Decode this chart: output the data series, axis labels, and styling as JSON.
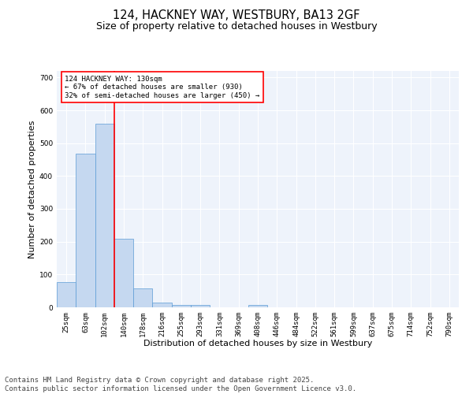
{
  "title_line1": "124, HACKNEY WAY, WESTBURY, BA13 2GF",
  "title_line2": "Size of property relative to detached houses in Westbury",
  "xlabel": "Distribution of detached houses by size in Westbury",
  "ylabel": "Number of detached properties",
  "categories": [
    "25sqm",
    "63sqm",
    "102sqm",
    "140sqm",
    "178sqm",
    "216sqm",
    "255sqm",
    "293sqm",
    "331sqm",
    "369sqm",
    "408sqm",
    "446sqm",
    "484sqm",
    "522sqm",
    "561sqm",
    "599sqm",
    "637sqm",
    "675sqm",
    "714sqm",
    "752sqm",
    "790sqm"
  ],
  "values": [
    78,
    468,
    560,
    208,
    57,
    14,
    8,
    8,
    0,
    0,
    7,
    0,
    0,
    0,
    0,
    0,
    0,
    0,
    0,
    0,
    0
  ],
  "bar_color": "#c5d8f0",
  "bar_edgecolor": "#5b9bd5",
  "vline_color": "red",
  "ylim": [
    0,
    720
  ],
  "yticks": [
    0,
    100,
    200,
    300,
    400,
    500,
    600,
    700
  ],
  "annotation_text": "124 HACKNEY WAY: 130sqm\n← 67% of detached houses are smaller (930)\n32% of semi-detached houses are larger (450) →",
  "annotation_box_color": "white",
  "annotation_box_edgecolor": "red",
  "background_color": "#eef3fb",
  "grid_color": "white",
  "footer_line1": "Contains HM Land Registry data © Crown copyright and database right 2025.",
  "footer_line2": "Contains public sector information licensed under the Open Government Licence v3.0.",
  "footer_fontsize": 6.5,
  "title_fontsize": 10.5,
  "subtitle_fontsize": 9,
  "xlabel_fontsize": 8,
  "ylabel_fontsize": 8,
  "annotation_fontsize": 6.5,
  "tick_fontsize": 6.5
}
